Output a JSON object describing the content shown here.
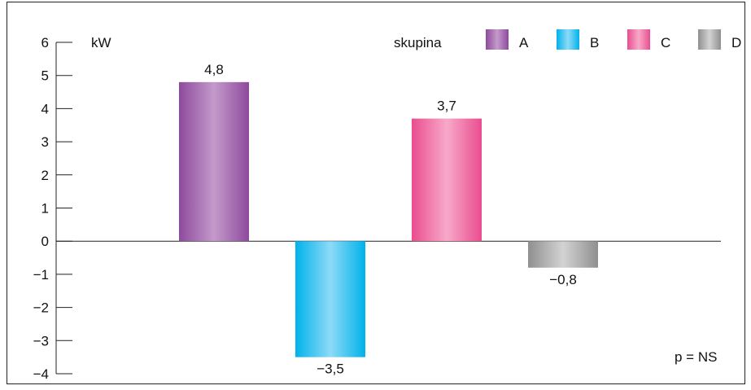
{
  "chart_data": {
    "type": "bar",
    "categories": [
      "A",
      "B",
      "C",
      "D"
    ],
    "values": [
      4.8,
      -3.5,
      3.7,
      -0.8
    ],
    "data_labels": [
      "4,8",
      "−3,5",
      "3,7",
      "−0,8"
    ],
    "ylabel": "kW",
    "ylim": [
      -4,
      6
    ],
    "yticks": [
      6,
      5,
      4,
      3,
      2,
      1,
      0,
      -1,
      -2,
      -3,
      -4
    ],
    "ytick_labels": [
      "6",
      "5",
      "4",
      "3",
      "2",
      "1",
      "0",
      "−1",
      "−2",
      "−3",
      "−4"
    ],
    "legend": {
      "title": "skupina",
      "placement": "top-right",
      "entries": [
        "A",
        "B",
        "C",
        "D"
      ]
    },
    "annotation": "p = NS",
    "colors": {
      "A": [
        "#8e4a9c",
        "#c49acb"
      ],
      "B": [
        "#00b2ea",
        "#8ddaf7"
      ],
      "C": [
        "#ea4d8f",
        "#f7a9c9"
      ],
      "D": [
        "#8f8f8f",
        "#d3d3d3"
      ]
    },
    "grid": false
  }
}
